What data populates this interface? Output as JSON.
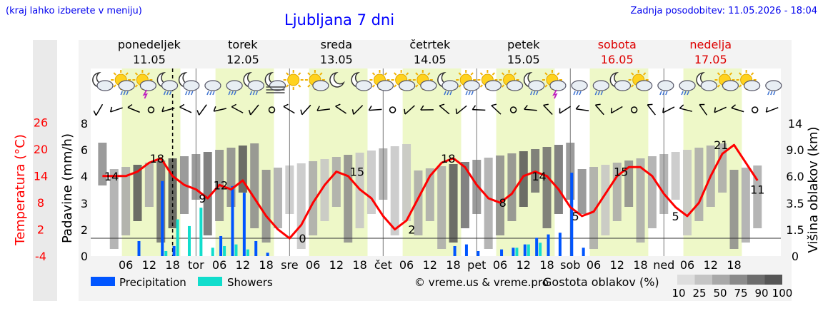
{
  "header": {
    "hint": "(kraj lahko izberete v meniju)",
    "title": "Ljubljana 7 dni",
    "updated": "Zadnja posodobitev: 11.05.2026 - 18:04"
  },
  "days": [
    {
      "name": "ponedeljek",
      "date": "11.05",
      "weekend": false,
      "abbr": ""
    },
    {
      "name": "torek",
      "date": "12.05",
      "weekend": false,
      "abbr": "tor"
    },
    {
      "name": "sreda",
      "date": "13.05",
      "weekend": false,
      "abbr": "sre"
    },
    {
      "name": "četrtek",
      "date": "14.05",
      "weekend": false,
      "abbr": "čet"
    },
    {
      "name": "petek",
      "date": "15.05",
      "weekend": false,
      "abbr": "pet"
    },
    {
      "name": "sobota",
      "date": "16.05",
      "weekend": true,
      "abbr": "sob"
    },
    {
      "name": "nedelja",
      "date": "17.05",
      "weekend": true,
      "abbr": "ned"
    }
  ],
  "icons": [
    "moon-cloud",
    "sun-cloud-rain",
    "sun-cloud-storm",
    "moon-rain",
    "moon-rain",
    "cloud-rain",
    "cloud-rain",
    "moon-rain",
    "moon-fog",
    "sun",
    "sun-cloud",
    "moon",
    "moon-cloud",
    "sun-cloud",
    "sun-cloud",
    "sun-cloud",
    "moon-rain",
    "sun-cloud-rain",
    "sun-cloud",
    "sun-cloud",
    "moon-rain",
    "sun-cloud-storm",
    "cloud-rain",
    "cloud-rain",
    "moon-cloud",
    "sun-cloud",
    "cloud-rain",
    "cloud-rain",
    "moon-cloud",
    "sun-cloud",
    "sun-cloud",
    "cloud-rain"
  ],
  "icon_labels": {
    "moon": "moon-icon",
    "moon-cloud": "moon-cloud-icon",
    "moon-rain": "moon-rain-icon",
    "moon-fog": "moon-fog-icon",
    "sun": "sun-icon",
    "sun-cloud": "sun-cloud-icon",
    "sun-cloud-rain": "sun-cloud-rain-icon",
    "sun-cloud-storm": "sun-cloud-storm-icon",
    "cloud-rain": "cloud-rain-icon"
  },
  "axes": {
    "left_title": "Padavine (mm/h)",
    "temp_title": "Temperatura (°C)",
    "right_title": "Višina oblakov (km)",
    "precip_ticks": [
      "0",
      "2",
      "3",
      "4",
      "6",
      "8"
    ],
    "temp_ticks": [
      "-4",
      "2",
      "8",
      "14",
      "20",
      "26"
    ],
    "height_ticks": [
      "0",
      "1.5",
      "3.5",
      "6.0",
      "9.0",
      "14"
    ],
    "hour_ticks": [
      "06",
      "12",
      "18"
    ]
  },
  "colors": {
    "temperature": "#ff0000",
    "precipitation": "#0055ff",
    "showers": "#11ddcc",
    "day_band": "#eef8c8",
    "weekend_text": "#dd0000",
    "link": "#0000ee"
  },
  "legend": {
    "precip_label": "Precipitation",
    "showers_label": "Showers",
    "credit": "© vreme.us & vreme.pro",
    "cloud_title": "Gostota oblakov (%)",
    "cloud_levels": [
      "10",
      "25",
      "50",
      "75",
      "90",
      "100"
    ],
    "cloud_shades": [
      "#dddddd",
      "#c4c4c4",
      "#a8a8a8",
      "#8a8a8a",
      "#6c6c6c",
      "#555555"
    ]
  },
  "chart_data": {
    "type": "line",
    "title": "Ljubljana 7 dni",
    "x_hours_since_start": [
      0,
      3,
      6,
      9,
      12,
      15,
      18,
      21,
      24,
      27,
      30,
      33,
      36,
      39,
      42,
      45,
      48,
      51,
      54,
      57,
      60,
      63,
      66,
      69,
      72,
      75,
      78,
      81,
      84,
      87,
      90,
      93,
      96,
      99,
      102,
      105,
      108,
      111,
      114,
      117,
      120,
      123,
      126,
      129,
      132,
      135,
      138,
      141,
      144,
      147,
      150,
      153,
      156,
      159,
      162,
      165,
      168
    ],
    "series": [
      {
        "name": "Temperatura (°C)",
        "unit": "°C",
        "values": [
          14,
          14,
          14,
          15,
          17,
          18,
          14,
          12,
          11,
          9,
          12,
          11,
          13,
          9,
          5,
          2,
          0,
          3,
          8,
          12,
          15,
          14,
          11,
          9,
          5,
          2,
          4,
          9,
          14,
          17,
          18,
          16,
          12,
          9,
          8,
          10,
          14,
          15,
          14,
          11,
          7,
          5,
          6,
          10,
          14,
          16,
          16,
          14,
          10,
          7,
          5,
          8,
          14,
          19,
          21,
          17,
          13
        ]
      },
      {
        "name": "Precipitation",
        "unit": "mm/h",
        "values": [
          0,
          0,
          0,
          0.9,
          0,
          4.5,
          0.6,
          0,
          0,
          0,
          1.2,
          4.2,
          3.8,
          0.9,
          0.2,
          0,
          0,
          0,
          0,
          0,
          0,
          0,
          0,
          0,
          0,
          0,
          0,
          0,
          0,
          0,
          0.6,
          0.7,
          0.3,
          0,
          0.4,
          0.5,
          0.7,
          1.1,
          1.3,
          1.4,
          5,
          0.5,
          0,
          0,
          0,
          0,
          0,
          0,
          0,
          0,
          0,
          0,
          0,
          0,
          0,
          0,
          0
        ]
      },
      {
        "name": "Showers",
        "unit": "mm/h",
        "values": [
          0,
          0,
          0,
          0,
          0,
          0.3,
          2.2,
          1.8,
          2.9,
          0.5,
          0.6,
          0.7,
          0.4,
          0,
          0,
          0,
          0,
          0,
          0,
          0,
          0,
          0,
          0,
          0,
          0,
          0,
          0,
          0,
          0,
          0,
          0,
          0,
          0,
          0,
          0,
          0.5,
          0.7,
          0.8,
          0,
          0,
          0,
          0,
          0,
          0,
          0,
          0,
          0,
          0,
          0,
          0,
          0,
          0,
          0,
          0,
          0,
          0,
          0
        ]
      }
    ],
    "temperature_labels": [
      {
        "t": 3,
        "v": "14"
      },
      {
        "t": 18,
        "v": "18"
      },
      {
        "t": 33,
        "v": "9"
      },
      {
        "t": 39,
        "v": "12"
      },
      {
        "t": 66,
        "v": "0"
      },
      {
        "t": 84,
        "v": "15"
      },
      {
        "t": 102,
        "v": "2"
      },
      {
        "t": 114,
        "v": "18"
      },
      {
        "t": 132,
        "v": "8"
      },
      {
        "t": 144,
        "v": "14"
      },
      {
        "t": 156,
        "v": "5"
      },
      {
        "t": 171,
        "v": "15"
      },
      {
        "t": 189,
        "v": "5"
      },
      {
        "t": 204,
        "v": "21"
      },
      {
        "t": 216,
        "v": "11"
      }
    ],
    "ylim_temp": [
      -4,
      26
    ],
    "ylim_precip": [
      0,
      8
    ],
    "ylim_cloud_height_km": [
      0,
      14
    ],
    "legend": "bottom",
    "grid": true
  }
}
